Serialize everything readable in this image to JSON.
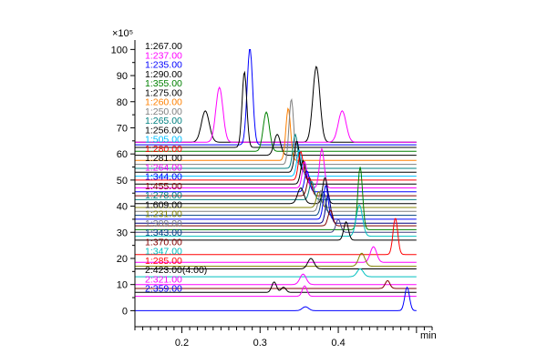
{
  "chart_data": {
    "type": "line",
    "title": "",
    "xlabel": "min",
    "ylabel": "",
    "y_multiplier": "×10⁵",
    "xlim": [
      0.14,
      0.52
    ],
    "ylim": [
      -3,
      105
    ],
    "x_ticks": [
      0.2,
      0.3,
      0.4
    ],
    "x_tick_labels": [
      "0.2",
      "0.3",
      "0.4"
    ],
    "y_ticks": [
      0,
      10,
      20,
      30,
      40,
      50,
      60,
      70,
      80,
      90,
      100
    ],
    "y_tick_labels": [
      "0",
      "10",
      "20",
      "30",
      "40",
      "50",
      "60",
      "70",
      "80",
      "90",
      "100"
    ],
    "grid": false,
    "legend_placement": "top-left",
    "series": [
      {
        "name": "1:267.00",
        "color": "#000000",
        "baseline": 64.5,
        "peaks": [
          {
            "x": 0.23,
            "h": 12,
            "w": 0.005
          },
          {
            "x": 0.372,
            "h": 29,
            "w": 0.0045
          }
        ]
      },
      {
        "name": "1:237.00",
        "color": "#ff00ff",
        "baseline": 64.5,
        "peaks": [
          {
            "x": 0.248,
            "h": 21,
            "w": 0.0045
          },
          {
            "x": 0.405,
            "h": 12,
            "w": 0.005
          }
        ]
      },
      {
        "name": "1:235.00",
        "color": "#0000ff",
        "baseline": 63.5,
        "peaks": [
          {
            "x": 0.287,
            "h": 37,
            "w": 0.0035
          }
        ]
      },
      {
        "name": "1:290.00",
        "color": "#000000",
        "baseline": 62.5,
        "peaks": [
          {
            "x": 0.28,
            "h": 29,
            "w": 0.003
          }
        ]
      },
      {
        "name": "1:355.00",
        "color": "#008000",
        "baseline": 61.0,
        "peaks": [
          {
            "x": 0.308,
            "h": 15,
            "w": 0.004
          }
        ]
      },
      {
        "name": "1:275.00",
        "color": "#000000",
        "baseline": 59.5,
        "peaks": [
          {
            "x": 0.322,
            "h": 8,
            "w": 0.004
          }
        ]
      },
      {
        "name": "1:260.00",
        "color": "#ff8000",
        "baseline": 57.5,
        "peaks": [
          {
            "x": 0.336,
            "h": 20,
            "w": 0.003
          }
        ]
      },
      {
        "name": "1:250.00",
        "color": "#808080",
        "baseline": 56.0,
        "peaks": [
          {
            "x": 0.34,
            "h": 25,
            "w": 0.003
          }
        ]
      },
      {
        "name": "1:265.00",
        "color": "#008080",
        "baseline": 54.5,
        "peaks": [
          {
            "x": 0.345,
            "h": 13,
            "w": 0.003
          }
        ]
      },
      {
        "name": "1:256.00",
        "color": "#000000",
        "baseline": 53.0,
        "peaks": [
          {
            "x": 0.347,
            "h": 12,
            "w": 0.003
          }
        ]
      },
      {
        "name": "1:505.00",
        "color": "#00c0ff",
        "baseline": 51.5,
        "peaks": [
          {
            "x": 0.35,
            "h": 10,
            "w": 0.003
          }
        ]
      },
      {
        "name": "1:280.00",
        "color": "#ff0000",
        "baseline": 50.0,
        "peaks": [
          {
            "x": 0.352,
            "h": 11,
            "w": 0.003
          }
        ]
      },
      {
        "name": "1:281.00",
        "color": "#000000",
        "baseline": 48.5,
        "peaks": [
          {
            "x": 0.355,
            "h": 9,
            "w": 0.003
          }
        ]
      },
      {
        "name": "1:264.00",
        "color": "#ff00ff",
        "baseline": 47.0,
        "peaks": [
          {
            "x": 0.357,
            "h": 10,
            "w": 0.003
          },
          {
            "x": 0.379,
            "h": 15,
            "w": 0.003
          }
        ]
      },
      {
        "name": "1:344.00",
        "color": "#0000ff",
        "baseline": 45.5,
        "peaks": [
          {
            "x": 0.36,
            "h": 8,
            "w": 0.003
          }
        ]
      },
      {
        "name": "1:455.00",
        "color": "#800000",
        "baseline": 44.0,
        "peaks": [
          {
            "x": 0.363,
            "h": 7,
            "w": 0.003
          }
        ]
      },
      {
        "name": "1:278.00",
        "color": "#008080",
        "baseline": 42.5,
        "peaks": [
          {
            "x": 0.366,
            "h": 7,
            "w": 0.003
          }
        ]
      },
      {
        "name": "1:609.00",
        "color": "#000000",
        "baseline": 41.0,
        "peaks": [
          {
            "x": 0.352,
            "h": 6,
            "w": 0.004
          },
          {
            "x": 0.383,
            "h": 10,
            "w": 0.003
          }
        ]
      },
      {
        "name": "1:231.00",
        "color": "#808000",
        "baseline": 39.5,
        "peaks": [
          {
            "x": 0.375,
            "h": 6,
            "w": 0.003
          }
        ]
      },
      {
        "name": "1:309.00",
        "color": "#808080",
        "baseline": 38.0,
        "peaks": [
          {
            "x": 0.378,
            "h": 8,
            "w": 0.003
          }
        ]
      },
      {
        "name": "1:343.00",
        "color": "#004080",
        "baseline": 36.5,
        "peaks": [
          {
            "x": 0.381,
            "h": 9,
            "w": 0.003
          }
        ]
      },
      {
        "name": "",
        "color": "#0000ff",
        "baseline": 35.0,
        "peaks": [
          {
            "x": 0.384,
            "h": 13,
            "w": 0.003
          }
        ]
      },
      {
        "name": "",
        "color": "#000080",
        "baseline": 33.5,
        "peaks": [
          {
            "x": 0.387,
            "h": 11,
            "w": 0.003
          }
        ]
      },
      {
        "name": "1:370.00",
        "color": "#800000",
        "baseline": 32.5,
        "peaks": [
          {
            "x": 0.39,
            "h": 6,
            "w": 0.003
          }
        ]
      },
      {
        "name": "",
        "color": "#008000",
        "baseline": 31.0,
        "peaks": [
          {
            "x": 0.428,
            "h": 24,
            "w": 0.003
          }
        ]
      },
      {
        "name": "",
        "color": "#404080",
        "baseline": 30.0,
        "peaks": [
          {
            "x": 0.4,
            "h": 5,
            "w": 0.003
          }
        ]
      },
      {
        "name": "1:347.00",
        "color": "#00c0c0",
        "baseline": 28.5,
        "peaks": [
          {
            "x": 0.427,
            "h": 12,
            "w": 0.004
          }
        ]
      },
      {
        "name": "",
        "color": "#000000",
        "baseline": 27.0,
        "peaks": [
          {
            "x": 0.41,
            "h": 7,
            "w": 0.003
          }
        ]
      },
      {
        "name": "1:285.00",
        "color": "#ff0000",
        "baseline": 21.5,
        "peaks": [
          {
            "x": 0.473,
            "h": 14,
            "w": 0.003
          }
        ]
      },
      {
        "name": "",
        "color": "#ff00ff",
        "baseline": 18.5,
        "peaks": [
          {
            "x": 0.445,
            "h": 6,
            "w": 0.004
          }
        ]
      },
      {
        "name": "",
        "color": "#808000",
        "baseline": 17.0,
        "peaks": [
          {
            "x": 0.43,
            "h": 5,
            "w": 0.004
          }
        ]
      },
      {
        "name": "2:423.00(4.00)",
        "color": "#000000",
        "baseline": 16.0,
        "peaks": [
          {
            "x": 0.365,
            "h": 4,
            "w": 0.004
          }
        ]
      },
      {
        "name": "",
        "color": "#00c0c0",
        "baseline": 13.0,
        "peaks": [
          {
            "x": 0.428,
            "h": 3,
            "w": 0.004
          }
        ]
      },
      {
        "name": "2:321.00",
        "color": "#ff00ff",
        "baseline": 10.0,
        "peaks": [
          {
            "x": 0.355,
            "h": 4,
            "w": 0.004
          }
        ]
      },
      {
        "name": "",
        "color": "#800000",
        "baseline": 8.5,
        "peaks": [
          {
            "x": 0.463,
            "h": 3,
            "w": 0.003
          }
        ]
      },
      {
        "name": "",
        "color": "#000000",
        "baseline": 7.0,
        "peaks": [
          {
            "x": 0.318,
            "h": 4,
            "w": 0.003
          },
          {
            "x": 0.33,
            "h": 2,
            "w": 0.003
          }
        ]
      },
      {
        "name": "",
        "color": "#ff00ff",
        "baseline": 5.5,
        "peaks": [
          {
            "x": 0.357,
            "h": 4,
            "w": 0.003
          }
        ]
      },
      {
        "name": "2:359.00",
        "color": "#0000ff",
        "baseline": 0.0,
        "peaks": [
          {
            "x": 0.358,
            "h": 1.5,
            "w": 0.004
          },
          {
            "x": 0.488,
            "h": 9,
            "w": 0.003
          }
        ]
      }
    ]
  }
}
